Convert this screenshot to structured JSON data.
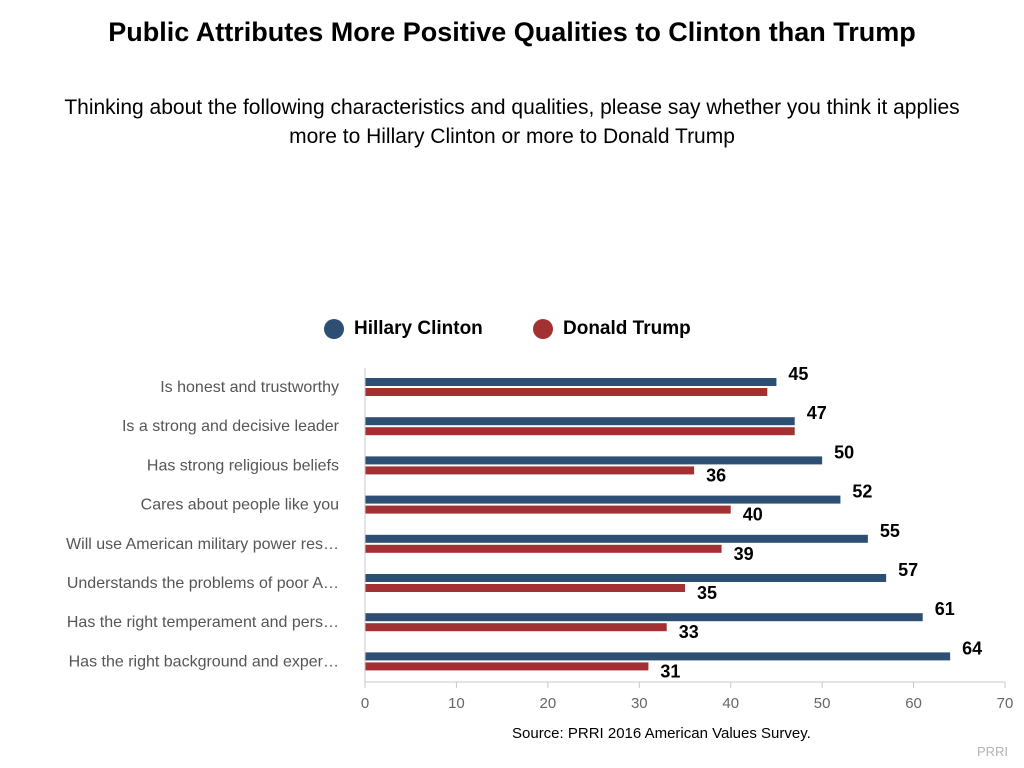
{
  "title": "Public Attributes More Positive Qualities to Clinton than Trump",
  "subtitle": "Thinking about the following characteristics and qualities, please say whether you think it applies more to Hillary Clinton or more to Donald Trump",
  "source": "Source: PRRI 2016 American Values Survey.",
  "brand": "PRRI",
  "colors": {
    "clinton": "#2c4f73",
    "trump": "#a33134"
  },
  "chart_data": {
    "type": "bar",
    "orientation": "horizontal",
    "categories": [
      "Is honest and trustworthy",
      "Is a strong and decisive leader",
      "Has strong religious beliefs",
      "Cares about people like you",
      "Will use American military power res…",
      "Understands the problems of poor A…",
      "Has the right temperament and pers…",
      "Has the right background and exper…"
    ],
    "series": [
      {
        "name": "Hillary Clinton",
        "values": [
          45,
          47,
          50,
          52,
          55,
          57,
          61,
          64
        ],
        "labels": [
          "45",
          "47",
          "50",
          "52",
          "55",
          "57",
          "61",
          "64"
        ]
      },
      {
        "name": "Donald Trump",
        "values": [
          44,
          47,
          36,
          40,
          39,
          35,
          33,
          31
        ],
        "labels": [
          "",
          "",
          "36",
          "40",
          "39",
          "35",
          "33",
          "31"
        ]
      }
    ],
    "xlim": [
      0,
      70
    ],
    "xticks": [
      "0",
      "10",
      "20",
      "30",
      "40",
      "50",
      "60",
      "70"
    ],
    "legend_position": "top",
    "grid": false
  }
}
